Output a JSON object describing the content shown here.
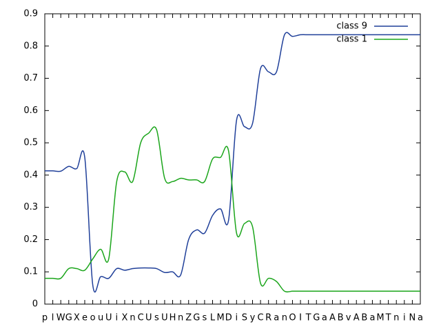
{
  "chart_data": {
    "type": "line",
    "categories": [
      "p",
      "l",
      "W",
      "G",
      "X",
      "e",
      "o",
      "u",
      "U",
      "i",
      "X",
      "n",
      "C",
      "U",
      "s",
      "U",
      "H",
      "n",
      "Z",
      "G",
      "s",
      "L",
      "M",
      "D",
      "i",
      "S",
      "y",
      "C",
      "R",
      "a",
      "n",
      "O",
      "I",
      "T",
      "G",
      "a",
      "A",
      "B",
      "v",
      "A",
      "B",
      "a",
      "M",
      "T",
      "n",
      "i",
      "N",
      "a"
    ],
    "series": [
      {
        "name": "class 9",
        "color": "#1f3f99",
        "values": [
          0.413,
          0.413,
          0.412,
          0.427,
          0.42,
          0.455,
          0.06,
          0.085,
          0.08,
          0.11,
          0.105,
          0.11,
          0.112,
          0.112,
          0.11,
          0.098,
          0.1,
          0.09,
          0.2,
          0.23,
          0.22,
          0.275,
          0.295,
          0.26,
          0.57,
          0.55,
          0.56,
          0.73,
          0.72,
          0.72,
          0.835,
          0.83,
          0.835,
          0.835,
          0.835,
          0.835,
          0.835,
          0.835,
          0.835,
          0.835,
          0.835,
          0.835,
          0.835,
          0.835,
          0.835,
          0.835,
          0.835,
          0.835
        ]
      },
      {
        "name": "class 1",
        "color": "#1aa51a",
        "values": [
          0.08,
          0.08,
          0.08,
          0.11,
          0.11,
          0.105,
          0.14,
          0.17,
          0.14,
          0.38,
          0.41,
          0.38,
          0.5,
          0.53,
          0.54,
          0.39,
          0.38,
          0.39,
          0.385,
          0.385,
          0.38,
          0.45,
          0.455,
          0.475,
          0.22,
          0.25,
          0.24,
          0.065,
          0.08,
          0.07,
          0.04,
          0.04,
          0.04,
          0.04,
          0.04,
          0.04,
          0.04,
          0.04,
          0.04,
          0.04,
          0.04,
          0.04,
          0.04,
          0.04,
          0.04,
          0.04,
          0.04,
          0.04
        ]
      }
    ],
    "ylim": [
      0,
      0.9
    ],
    "yticks": [
      0,
      0.1,
      0.2,
      0.3,
      0.4,
      0.5,
      0.6,
      0.7,
      0.8,
      0.9
    ],
    "legend": "upper right",
    "grid": false
  }
}
